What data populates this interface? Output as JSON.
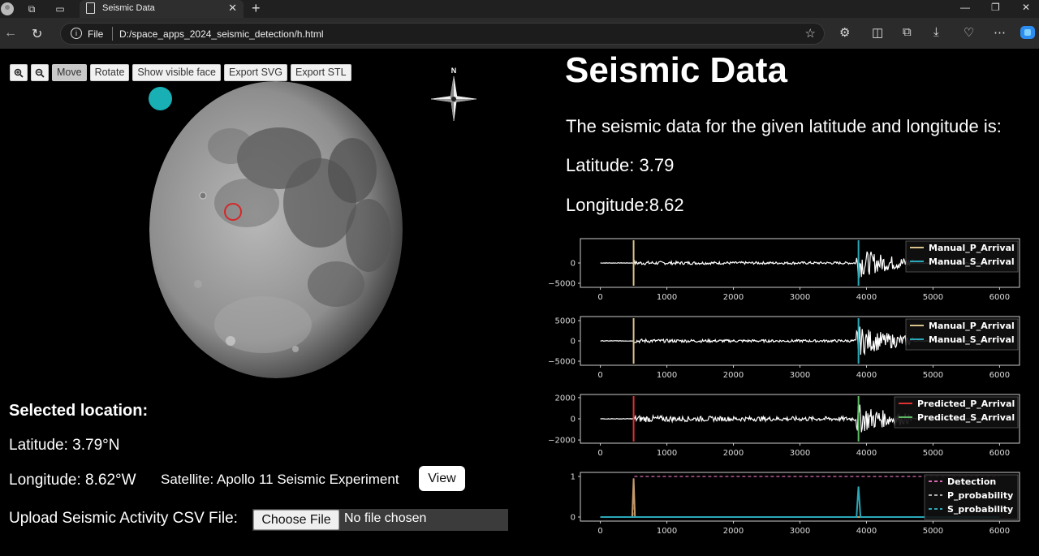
{
  "browser": {
    "tab_title": "Seismic Data",
    "url_scheme": "File",
    "url_path": "D:/space_apps_2024_seismic_detection/h.html"
  },
  "toolbar": {
    "buttons": [
      "Move",
      "Rotate",
      "Show visible face",
      "Export SVG",
      "Export STL"
    ]
  },
  "compass": {
    "north_label": "N"
  },
  "selection": {
    "title": "Selected location:",
    "latitude": "Latitude: 3.79°N",
    "longitude": "Longitude: 8.62°W",
    "satellite": "Satellite: Apollo 11 Seismic Experiment",
    "view_label": "View"
  },
  "upload": {
    "label": "Upload Seismic Activity CSV File:",
    "button": "Choose File",
    "status": "No file chosen"
  },
  "header": {
    "title": "Seismic Data",
    "description": "The seismic data for the given latitude and longitude is:",
    "latitude": "Latitude: 3.79",
    "longitude": "Longitude:8.62"
  },
  "colors": {
    "accent_cyan": "#18b0b5",
    "marker_red": "#d62728",
    "p_manual": "#d9c38a",
    "s_manual": "#2aa7b8",
    "p_pred": "#e03030",
    "s_pred": "#5dbb63"
  },
  "chart_data": [
    {
      "type": "line",
      "x_ticks": [
        "0",
        "1000",
        "2000",
        "3000",
        "4000",
        "5000",
        "6000"
      ],
      "y_ticks": [
        "0",
        "−5000"
      ],
      "xlim": [
        -300,
        6300
      ],
      "ylim": [
        -6000,
        6000
      ],
      "vlines": [
        {
          "name": "Manual_P_Arrival",
          "x": 500
        },
        {
          "name": "Manual_S_Arrival",
          "x": 3880
        }
      ],
      "legend": [
        "Manual_P_Arrival",
        "Manual_S_Arrival"
      ]
    },
    {
      "type": "line",
      "x_ticks": [
        "0",
        "1000",
        "2000",
        "3000",
        "4000",
        "5000",
        "6000"
      ],
      "y_ticks": [
        "5000",
        "0",
        "−5000"
      ],
      "xlim": [
        -300,
        6300
      ],
      "ylim": [
        -6000,
        6000
      ],
      "vlines": [
        {
          "name": "Manual_P_Arrival",
          "x": 500
        },
        {
          "name": "Manual_S_Arrival",
          "x": 3880
        }
      ],
      "legend": [
        "Manual_P_Arrival",
        "Manual_S_Arrival"
      ]
    },
    {
      "type": "line",
      "x_ticks": [
        "0",
        "1000",
        "2000",
        "3000",
        "4000",
        "5000",
        "6000"
      ],
      "y_ticks": [
        "2000",
        "0",
        "−2000"
      ],
      "xlim": [
        -300,
        6300
      ],
      "ylim": [
        -2300,
        2300
      ],
      "vlines": [
        {
          "name": "Predicted_P_Arrival",
          "x": 500
        },
        {
          "name": "Predicted_S_Arrival",
          "x": 3880
        }
      ],
      "legend": [
        "Predicted_P_Arrival",
        "Predicted_S_Arrival"
      ]
    },
    {
      "type": "line",
      "x_ticks": [
        "0",
        "1000",
        "2000",
        "3000",
        "4000",
        "5000",
        "6000"
      ],
      "y_ticks": [
        "1",
        "0"
      ],
      "xlim": [
        -300,
        6300
      ],
      "ylim": [
        -0.1,
        1.1
      ],
      "series": [
        {
          "name": "Detection",
          "x": [
            0,
            490,
            500,
            6000
          ],
          "y": [
            0,
            0,
            1,
            1
          ]
        },
        {
          "name": "P_probability",
          "x": [
            0,
            480,
            500,
            520,
            6000
          ],
          "y": [
            0,
            0,
            0.95,
            0,
            0
          ]
        },
        {
          "name": "S_probability",
          "x": [
            0,
            3850,
            3880,
            3910,
            6000
          ],
          "y": [
            0,
            0,
            0.75,
            0,
            0
          ]
        }
      ],
      "legend": [
        "Detection",
        "P_probability",
        "S_probability"
      ]
    }
  ]
}
